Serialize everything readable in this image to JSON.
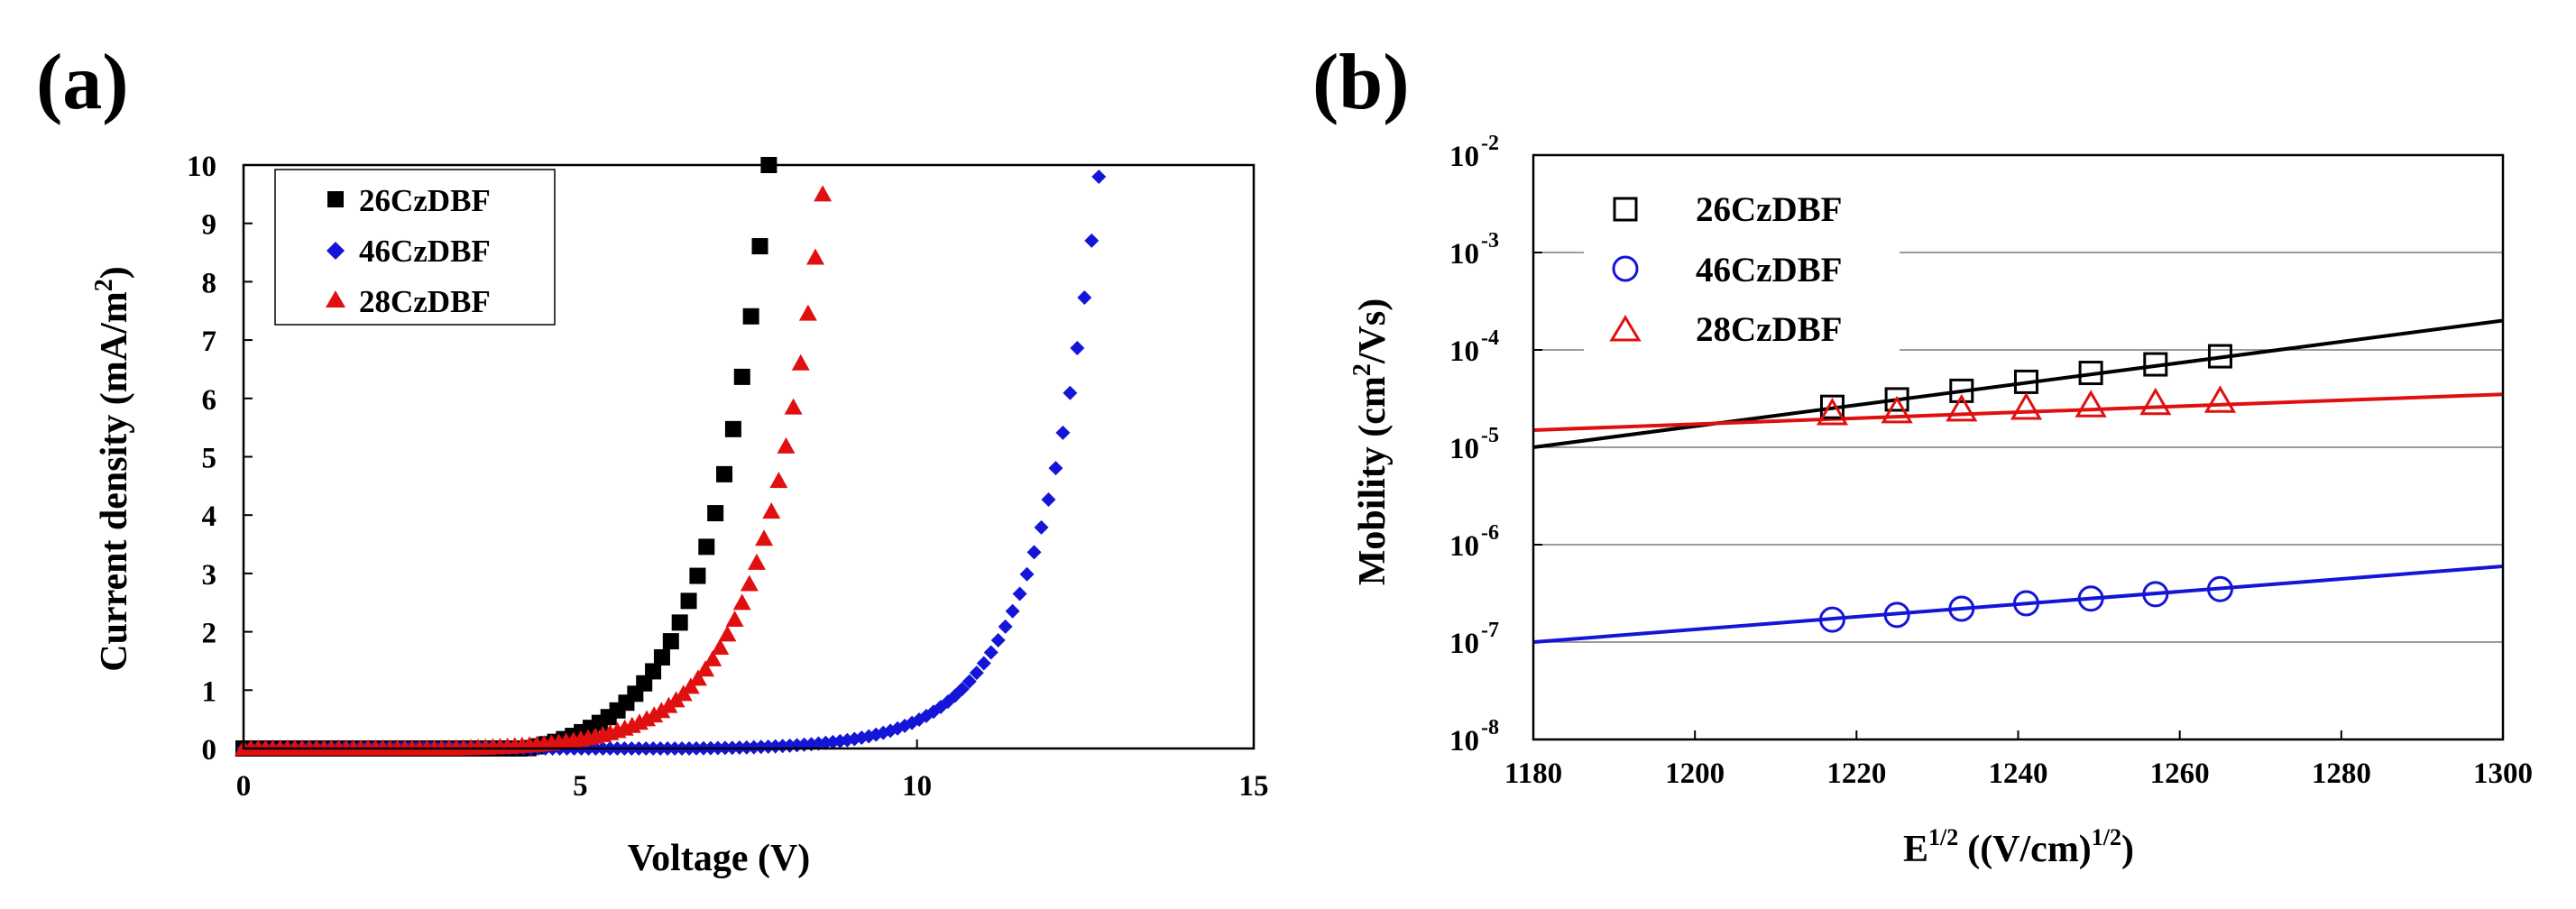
{
  "chart_data": [
    {
      "panel_label": "(a)",
      "type": "scatter",
      "xlabel": "Voltage (V)",
      "ylabel": "Current density (mA/m",
      "ylabel_sup": "2",
      "ylabel_end": ")",
      "xlim": [
        0,
        15
      ],
      "ylim": [
        0,
        10
      ],
      "x_ticks": [
        "0",
        "5",
        "10",
        "15"
      ],
      "y_ticks": [
        "0",
        "1",
        "2",
        "3",
        "4",
        "5",
        "6",
        "7",
        "8",
        "9",
        "10"
      ],
      "legend_position": "top-left",
      "series": [
        {
          "name": "26CzDBF",
          "marker": "square",
          "color": "#000000",
          "v_on": 4.2,
          "v_max": 7.8,
          "points": 60,
          "y_end": 10.0
        },
        {
          "name": "46CzDBF",
          "marker": "diamond",
          "color": "#1515d8",
          "v_on": 6.6,
          "v_max": 12.7,
          "points": 120,
          "y_end": 9.8
        },
        {
          "name": "28CzDBF",
          "marker": "triangle",
          "color": "#e01010",
          "v_on": 3.0,
          "v_max": 8.6,
          "points": 80,
          "y_end": 9.5
        }
      ]
    },
    {
      "panel_label": "(b)",
      "type": "scatter",
      "xlabel_main": "E",
      "xlabel_sup": "1/2",
      "xlabel_mid": "((V/cm)",
      "xlabel_sup2": "1/2",
      "xlabel_end": ")",
      "ylabel_main": "Mobility (cm",
      "ylabel_sup": "2",
      "ylabel_end": "/Vs)",
      "yscale": "log",
      "xlim": [
        1180,
        1300
      ],
      "ylim_exp": [
        -8,
        -2
      ],
      "x_ticks": [
        "1180",
        "1200",
        "1220",
        "1240",
        "1260",
        "1280",
        "1300"
      ],
      "y_ticks": [
        {
          "base": "10",
          "exp": "-8"
        },
        {
          "base": "10",
          "exp": "-7"
        },
        {
          "base": "10",
          "exp": "-6"
        },
        {
          "base": "10",
          "exp": "-5"
        },
        {
          "base": "10",
          "exp": "-4"
        },
        {
          "base": "10",
          "exp": "-3"
        },
        {
          "base": "10",
          "exp": "-2"
        }
      ],
      "grid": "horizontal",
      "legend_position": "top-left",
      "x_points": [
        1217,
        1225,
        1233,
        1241,
        1249,
        1257,
        1265
      ],
      "series": [
        {
          "name": "26CzDBF",
          "marker": "open-square",
          "color": "#000000",
          "values": [
            2.6e-05,
            3.1e-05,
            3.8e-05,
            4.7e-05,
            5.8e-05,
            7.1e-05,
            8.6e-05
          ],
          "fit": {
            "x": [
              1180,
              1300
            ],
            "y": [
              1e-05,
              0.0002
            ]
          }
        },
        {
          "name": "46CzDBF",
          "marker": "open-circle",
          "color": "#1515d8",
          "values": [
            1.7e-07,
            1.9e-07,
            2.2e-07,
            2.5e-07,
            2.8e-07,
            3.1e-07,
            3.5e-07
          ],
          "fit": {
            "x": [
              1180,
              1300
            ],
            "y": [
              1e-07,
              6e-07
            ]
          }
        },
        {
          "name": "28CzDBF",
          "marker": "open-triangle",
          "color": "#e01010",
          "values": [
            2.2e-05,
            2.3e-05,
            2.4e-05,
            2.5e-05,
            2.65e-05,
            2.8e-05,
            2.95e-05
          ],
          "fit": {
            "x": [
              1180,
              1300
            ],
            "y": [
              1.5e-05,
              3.5e-05
            ]
          }
        }
      ]
    }
  ]
}
